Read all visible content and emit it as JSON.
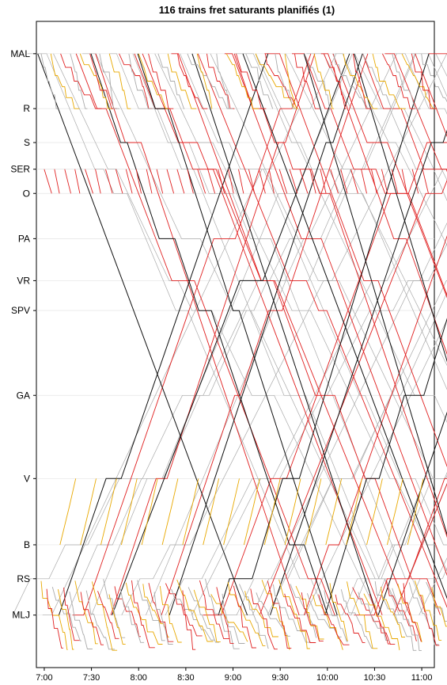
{
  "chart_data": {
    "type": "line",
    "title": "116 trains fret saturants planifiés (1)",
    "xlabel": "",
    "ylabel": "",
    "x_range_minutes": [
      415,
      668
    ],
    "x_ticks": [
      {
        "label": "7:00",
        "value": 420
      },
      {
        "label": "7:30",
        "value": 450
      },
      {
        "label": "8:00",
        "value": 480
      },
      {
        "label": "8:30",
        "value": 510
      },
      {
        "label": "9:00",
        "value": 540
      },
      {
        "label": "9:30",
        "value": 570
      },
      {
        "label": "10:00",
        "value": 600
      },
      {
        "label": "10:30",
        "value": 630
      },
      {
        "label": "11:00",
        "value": 660
      }
    ],
    "stations": [
      {
        "label": "MAL",
        "km": 0
      },
      {
        "label": "R",
        "km": 6.8
      },
      {
        "label": "S",
        "km": 11
      },
      {
        "label": "SER",
        "km": 14.3
      },
      {
        "label": "O",
        "km": 17.3
      },
      {
        "label": "PA",
        "km": 22.9
      },
      {
        "label": "VR",
        "km": 28.1
      },
      {
        "label": "SPV",
        "km": 31.8
      },
      {
        "label": "GA",
        "km": 42.3
      },
      {
        "label": "V",
        "km": 52.6
      },
      {
        "label": "B",
        "km": 60.8
      },
      {
        "label": "RS",
        "km": 65
      },
      {
        "label": "MLJ",
        "km": 69.5
      }
    ],
    "y_range_km": [
      -4,
      76
    ],
    "grid": false,
    "series": [
      {
        "color": "#aaaaaa",
        "values": []
      },
      {
        "color": "#e8a800",
        "values": []
      },
      {
        "color": "#e02020",
        "values": []
      },
      {
        "color": "#111111",
        "values": []
      }
    ]
  }
}
